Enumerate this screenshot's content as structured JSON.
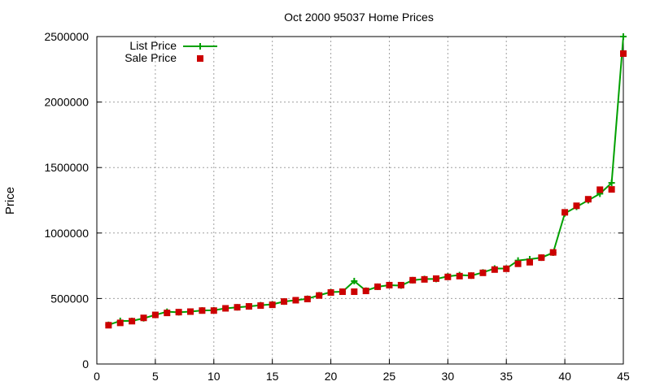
{
  "chart_data": {
    "type": "line",
    "title": "Oct 2000 95037 Home Prices",
    "xlabel": "",
    "ylabel": "Price",
    "xlim": [
      0,
      45
    ],
    "ylim": [
      0,
      2500000
    ],
    "x_ticks": [
      "0",
      "5",
      "10",
      "15",
      "20",
      "25",
      "30",
      "35",
      "40",
      "45"
    ],
    "y_ticks": [
      "0",
      "500000",
      "1000000",
      "1500000",
      "2000000",
      "2500000"
    ],
    "grid": true,
    "legend_position": "top-left",
    "x": [
      1,
      2,
      3,
      4,
      5,
      6,
      7,
      8,
      9,
      10,
      11,
      12,
      13,
      14,
      15,
      16,
      17,
      18,
      19,
      20,
      21,
      22,
      23,
      24,
      25,
      26,
      27,
      28,
      29,
      30,
      31,
      32,
      33,
      34,
      35,
      36,
      37,
      38,
      39,
      40,
      41,
      42,
      43,
      44,
      45
    ],
    "series": [
      {
        "name": "List Price",
        "style": "linespoints",
        "color": "#00a000",
        "marker": "plus",
        "values": [
          299000,
          329000,
          329000,
          349000,
          375000,
          399000,
          395000,
          400000,
          409000,
          410000,
          425000,
          433000,
          440000,
          449000,
          455000,
          477000,
          487000,
          498000,
          525000,
          549000,
          552000,
          633000,
          560000,
          590000,
          602000,
          599000,
          640000,
          649000,
          649000,
          669000,
          679000,
          675000,
          699000,
          729000,
          729000,
          790000,
          800000,
          812000,
          850000,
          1150000,
          1200000,
          1250000,
          1300000,
          1383000,
          2500000
        ]
      },
      {
        "name": "Sale Price",
        "style": "points",
        "color": "#cc0000",
        "marker": "square",
        "values": [
          296000,
          314000,
          327000,
          352000,
          375000,
          390000,
          396000,
          400000,
          408000,
          408000,
          425000,
          433000,
          440000,
          446000,
          452000,
          477000,
          487000,
          496000,
          523000,
          546000,
          552000,
          552000,
          558000,
          590000,
          602000,
          602000,
          640000,
          646000,
          652000,
          665000,
          671000,
          675000,
          696000,
          721000,
          727000,
          765000,
          777000,
          812000,
          852000,
          1158000,
          1208000,
          1258000,
          1331000,
          1333000,
          2370000
        ]
      }
    ]
  }
}
